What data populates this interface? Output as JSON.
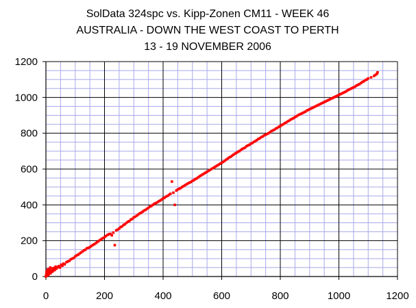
{
  "chart_data": {
    "type": "scatter",
    "title_lines": [
      "SolData 324spc vs. Kipp-Zonen CM11 - WEEK 46",
      "AUSTRALIA - DOWN THE WEST COAST TO PERTH",
      "13 - 19 NOVEMBER 2006"
    ],
    "xlabel": "",
    "ylabel": "",
    "xlim": [
      0,
      1200
    ],
    "ylim": [
      0,
      1200
    ],
    "x_ticks": [
      "0",
      "200",
      "400",
      "600",
      "800",
      "1000",
      "1200"
    ],
    "y_ticks": [
      "0",
      "200",
      "400",
      "600",
      "800",
      "1000",
      "1200"
    ],
    "grid": true,
    "legend": "none",
    "marker_color": "#ff0000",
    "series": [
      {
        "points": [
          [
            0,
            0
          ],
          [
            1,
            10
          ],
          [
            2,
            25
          ],
          [
            3,
            5
          ],
          [
            4,
            30
          ],
          [
            5,
            12
          ],
          [
            6,
            40
          ],
          [
            7,
            20
          ],
          [
            8,
            8
          ],
          [
            9,
            35
          ],
          [
            10,
            15
          ],
          [
            11,
            28
          ],
          [
            12,
            42
          ],
          [
            14,
            22
          ],
          [
            15,
            50
          ],
          [
            16,
            18
          ],
          [
            18,
            33
          ],
          [
            20,
            26
          ],
          [
            22,
            45
          ],
          [
            24,
            30
          ],
          [
            26,
            38
          ],
          [
            28,
            48
          ],
          [
            30,
            36
          ],
          [
            33,
            55
          ],
          [
            36,
            44
          ],
          [
            40,
            52
          ],
          [
            44,
            58
          ],
          [
            48,
            50
          ],
          [
            52,
            66
          ],
          [
            56,
            60
          ],
          [
            60,
            72
          ],
          [
            64,
            68
          ],
          [
            70,
            80
          ],
          [
            75,
            84
          ],
          [
            80,
            88
          ],
          [
            85,
            96
          ],
          [
            90,
            100
          ],
          [
            95,
            104
          ],
          [
            100,
            112
          ],
          [
            105,
            118
          ],
          [
            110,
            122
          ],
          [
            115,
            128
          ],
          [
            120,
            134
          ],
          [
            125,
            140
          ],
          [
            130,
            146
          ],
          [
            135,
            150
          ],
          [
            140,
            158
          ],
          [
            145,
            160
          ],
          [
            150,
            164
          ],
          [
            155,
            170
          ],
          [
            160,
            176
          ],
          [
            165,
            180
          ],
          [
            170,
            186
          ],
          [
            175,
            192
          ],
          [
            180,
            198
          ],
          [
            185,
            204
          ],
          [
            190,
            210
          ],
          [
            195,
            214
          ],
          [
            200,
            220
          ],
          [
            205,
            226
          ],
          [
            210,
            232
          ],
          [
            215,
            236
          ],
          [
            220,
            238
          ],
          [
            225,
            230
          ],
          [
            230,
            245
          ],
          [
            235,
            175
          ],
          [
            240,
            258
          ],
          [
            245,
            262
          ],
          [
            250,
            268
          ],
          [
            255,
            276
          ],
          [
            260,
            280
          ],
          [
            265,
            288
          ],
          [
            270,
            292
          ],
          [
            275,
            300
          ],
          [
            280,
            306
          ],
          [
            285,
            310
          ],
          [
            290,
            318
          ],
          [
            295,
            322
          ],
          [
            300,
            330
          ],
          [
            305,
            334
          ],
          [
            310,
            340
          ],
          [
            315,
            346
          ],
          [
            320,
            352
          ],
          [
            325,
            356
          ],
          [
            330,
            362
          ],
          [
            335,
            368
          ],
          [
            340,
            372
          ],
          [
            345,
            378
          ],
          [
            350,
            384
          ],
          [
            355,
            390
          ],
          [
            360,
            394
          ],
          [
            365,
            400
          ],
          [
            370,
            406
          ],
          [
            375,
            410
          ],
          [
            380,
            414
          ],
          [
            385,
            420
          ],
          [
            390,
            424
          ],
          [
            395,
            430
          ],
          [
            400,
            436
          ],
          [
            405,
            440
          ],
          [
            410,
            446
          ],
          [
            415,
            450
          ],
          [
            420,
            456
          ],
          [
            425,
            462
          ],
          [
            430,
            530
          ],
          [
            435,
            468
          ],
          [
            440,
            400
          ],
          [
            445,
            480
          ],
          [
            450,
            486
          ],
          [
            455,
            490
          ],
          [
            460,
            494
          ],
          [
            465,
            500
          ],
          [
            470,
            505
          ],
          [
            475,
            510
          ],
          [
            480,
            515
          ],
          [
            485,
            520
          ],
          [
            490,
            524
          ],
          [
            495,
            528
          ],
          [
            500,
            534
          ],
          [
            505,
            538
          ],
          [
            510,
            544
          ],
          [
            515,
            548
          ],
          [
            520,
            554
          ],
          [
            525,
            560
          ],
          [
            530,
            565
          ],
          [
            535,
            570
          ],
          [
            540,
            575
          ],
          [
            545,
            580
          ],
          [
            550,
            585
          ],
          [
            555,
            590
          ],
          [
            560,
            595
          ],
          [
            565,
            600
          ],
          [
            570,
            605
          ],
          [
            575,
            610
          ],
          [
            580,
            615
          ],
          [
            585,
            620
          ],
          [
            590,
            625
          ],
          [
            595,
            630
          ],
          [
            600,
            635
          ],
          [
            605,
            640
          ],
          [
            610,
            646
          ],
          [
            615,
            652
          ],
          [
            620,
            658
          ],
          [
            625,
            664
          ],
          [
            630,
            668
          ],
          [
            635,
            674
          ],
          [
            640,
            680
          ],
          [
            645,
            686
          ],
          [
            650,
            690
          ],
          [
            655,
            696
          ],
          [
            660,
            700
          ],
          [
            665,
            706
          ],
          [
            670,
            712
          ],
          [
            675,
            716
          ],
          [
            680,
            720
          ],
          [
            685,
            728
          ],
          [
            690,
            732
          ],
          [
            695,
            736
          ],
          [
            700,
            742
          ],
          [
            705,
            746
          ],
          [
            710,
            752
          ],
          [
            715,
            756
          ],
          [
            720,
            762
          ],
          [
            725,
            768
          ],
          [
            730,
            772
          ],
          [
            735,
            778
          ],
          [
            740,
            782
          ],
          [
            745,
            788
          ],
          [
            750,
            792
          ],
          [
            755,
            796
          ],
          [
            760,
            800
          ],
          [
            765,
            806
          ],
          [
            770,
            812
          ],
          [
            775,
            816
          ],
          [
            780,
            820
          ],
          [
            785,
            826
          ],
          [
            790,
            830
          ],
          [
            795,
            836
          ],
          [
            800,
            840
          ],
          [
            805,
            846
          ],
          [
            810,
            850
          ],
          [
            815,
            856
          ],
          [
            820,
            860
          ],
          [
            825,
            866
          ],
          [
            830,
            870
          ],
          [
            835,
            876
          ],
          [
            840,
            880
          ],
          [
            845,
            884
          ],
          [
            850,
            890
          ],
          [
            855,
            894
          ],
          [
            860,
            900
          ],
          [
            865,
            904
          ],
          [
            870,
            908
          ],
          [
            875,
            912
          ],
          [
            880,
            916
          ],
          [
            885,
            920
          ],
          [
            890,
            926
          ],
          [
            895,
            930
          ],
          [
            900,
            934
          ],
          [
            905,
            938
          ],
          [
            910,
            942
          ],
          [
            915,
            946
          ],
          [
            920,
            950
          ],
          [
            925,
            954
          ],
          [
            930,
            958
          ],
          [
            935,
            962
          ],
          [
            940,
            966
          ],
          [
            945,
            970
          ],
          [
            950,
            974
          ],
          [
            955,
            978
          ],
          [
            960,
            982
          ],
          [
            965,
            986
          ],
          [
            970,
            990
          ],
          [
            975,
            994
          ],
          [
            980,
            998
          ],
          [
            985,
            1002
          ],
          [
            990,
            1006
          ],
          [
            995,
            1010
          ],
          [
            1000,
            1014
          ],
          [
            1005,
            1018
          ],
          [
            1010,
            1022
          ],
          [
            1015,
            1026
          ],
          [
            1020,
            1030
          ],
          [
            1025,
            1034
          ],
          [
            1030,
            1040
          ],
          [
            1035,
            1044
          ],
          [
            1040,
            1048
          ],
          [
            1045,
            1052
          ],
          [
            1050,
            1056
          ],
          [
            1055,
            1060
          ],
          [
            1060,
            1066
          ],
          [
            1065,
            1070
          ],
          [
            1070,
            1074
          ],
          [
            1075,
            1080
          ],
          [
            1080,
            1086
          ],
          [
            1085,
            1090
          ],
          [
            1090,
            1096
          ],
          [
            1095,
            1100
          ],
          [
            1100,
            1106
          ],
          [
            1110,
            1112
          ],
          [
            1120,
            1120
          ],
          [
            1125,
            1126
          ],
          [
            1130,
            1132
          ],
          [
            1132,
            1140
          ]
        ]
      }
    ]
  }
}
